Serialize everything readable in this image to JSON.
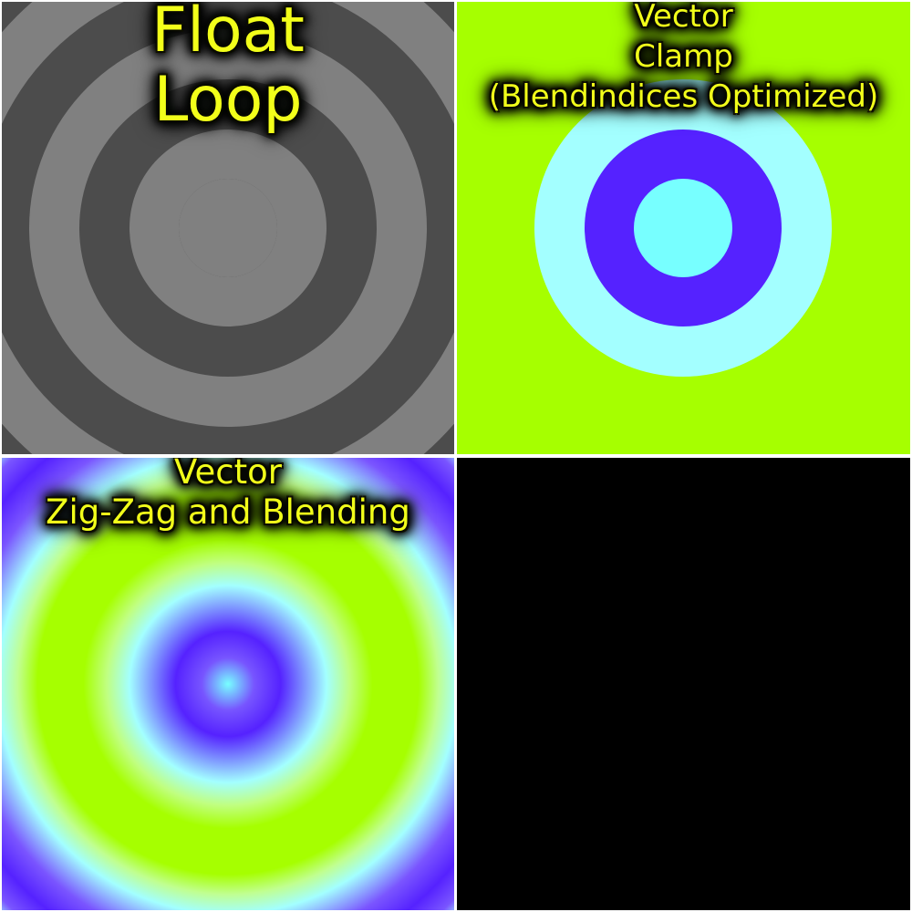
{
  "panels": [
    {
      "caption": [
        "Float",
        "Loop"
      ],
      "colors": {
        "light": "#808080",
        "dark": "#4c4c4c"
      }
    },
    {
      "caption": [
        "Vector",
        "Clamp",
        "(Blendindices Optimized)"
      ],
      "colors": {
        "background": "#a6ff00",
        "outer_ring": "#a3ffff",
        "middle_ring": "#5522ff",
        "center": "#77ffff"
      }
    },
    {
      "caption": [
        "Vector",
        "Zig-Zag and Blending"
      ],
      "colors": {
        "yellow_green": "#a6ff00",
        "cyan": "#a3ffff",
        "blue": "#5522ff",
        "center": "#77ffff"
      }
    },
    {
      "caption": [],
      "colors": {
        "background": "#000000"
      }
    }
  ],
  "caption_color": "#f2ff1a"
}
